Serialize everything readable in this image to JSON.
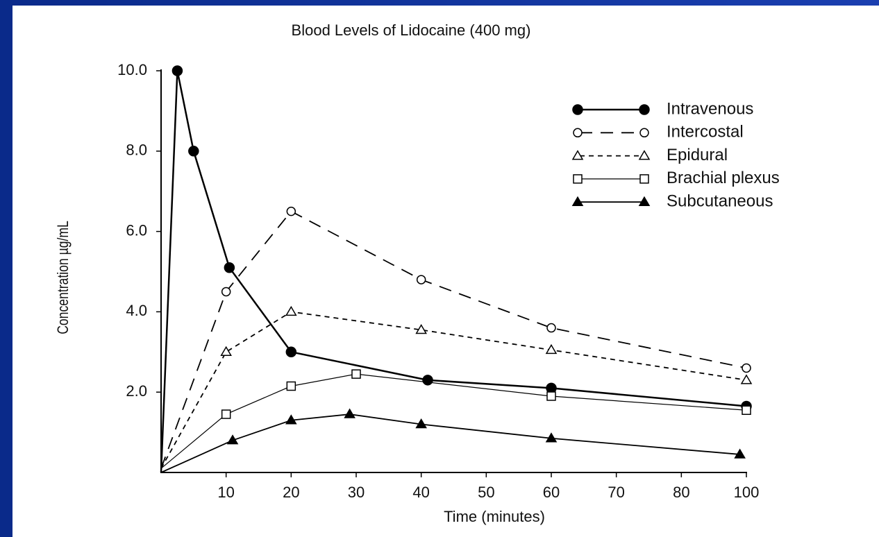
{
  "chart_data": {
    "type": "line",
    "title": "Blood Levels of Lidocaine (400 mg)",
    "x_label": "Time (minutes)",
    "y_label": "Concentration µg/mL",
    "xlim": [
      0,
      100
    ],
    "xticks": [
      10,
      20,
      30,
      40,
      50,
      60,
      70,
      80,
      100
    ],
    "ylim": [
      0,
      10
    ],
    "yticks": [
      {
        "value": 2,
        "label": "2.0"
      },
      {
        "value": 4,
        "label": "4.0"
      },
      {
        "value": 6,
        "label": "6.0"
      },
      {
        "value": 8,
        "label": "8.0"
      },
      {
        "value": 10,
        "label": "10.0"
      }
    ],
    "legend": "upper right",
    "series": [
      {
        "name": "Intravenous",
        "color": "#000000",
        "marker": "circle",
        "filled": true,
        "dash": "solid",
        "width": 2.5,
        "x": [
          0,
          2.5,
          5,
          10.5,
          20,
          41,
          60,
          100
        ],
        "values": [
          0,
          10,
          8,
          5.1,
          3.0,
          2.3,
          2.1,
          1.65
        ]
      },
      {
        "name": "Intercostal",
        "color": "#000000",
        "marker": "circle",
        "filled": false,
        "dash": "long",
        "width": 1.8,
        "x": [
          0,
          10,
          20,
          40,
          60,
          100
        ],
        "values": [
          0.1,
          4.5,
          6.5,
          4.8,
          3.6,
          2.6
        ]
      },
      {
        "name": "Epidural",
        "color": "#000000",
        "marker": "triangle",
        "filled": false,
        "dash": "short",
        "width": 1.8,
        "x": [
          0,
          10,
          20,
          40,
          60,
          100
        ],
        "values": [
          0.1,
          3.0,
          4.0,
          3.55,
          3.05,
          2.3
        ]
      },
      {
        "name": "Brachial plexus",
        "color": "#000000",
        "marker": "square",
        "filled": false,
        "dash": "solid",
        "width": 1.2,
        "x": [
          0,
          10,
          20,
          30,
          60,
          100
        ],
        "values": [
          0.1,
          1.45,
          2.15,
          2.45,
          1.9,
          1.55
        ]
      },
      {
        "name": "Subcutaneous",
        "color": "#000000",
        "marker": "triangle",
        "filled": true,
        "dash": "solid",
        "width": 1.8,
        "x": [
          0,
          11,
          20,
          29,
          40,
          60,
          98
        ],
        "values": [
          0,
          0.8,
          1.3,
          1.45,
          1.2,
          0.85,
          0.45
        ]
      }
    ]
  }
}
